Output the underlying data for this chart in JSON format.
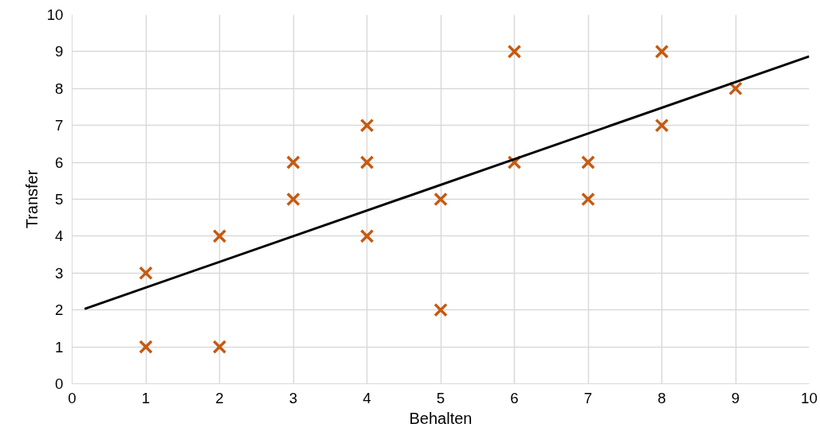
{
  "chart_data": {
    "type": "scatter",
    "xlabel": "Behalten",
    "ylabel": "Transfer",
    "xlim": [
      0,
      10
    ],
    "ylim": [
      0,
      10
    ],
    "xticks": [
      0,
      1,
      2,
      3,
      4,
      5,
      6,
      7,
      8,
      9,
      10
    ],
    "yticks": [
      0,
      1,
      2,
      3,
      4,
      5,
      6,
      7,
      8,
      9,
      10
    ],
    "grid": true,
    "series": [
      {
        "marker": "cross",
        "color": "#c55a11",
        "x": [
          1,
          1,
          2,
          2,
          3,
          3,
          4,
          4,
          4,
          5,
          5,
          6,
          6,
          7,
          7,
          8,
          8,
          9
        ],
        "values": [
          3,
          1,
          4,
          1,
          6,
          5,
          7,
          6,
          4,
          5,
          2,
          9,
          6,
          6,
          5,
          9,
          7,
          8
        ]
      },
      {
        "type": "line",
        "marker": "none",
        "line_style": "solid",
        "color": "#000000",
        "x": [
          0.17,
          10
        ],
        "values": [
          2.03,
          8.87
        ]
      }
    ]
  }
}
